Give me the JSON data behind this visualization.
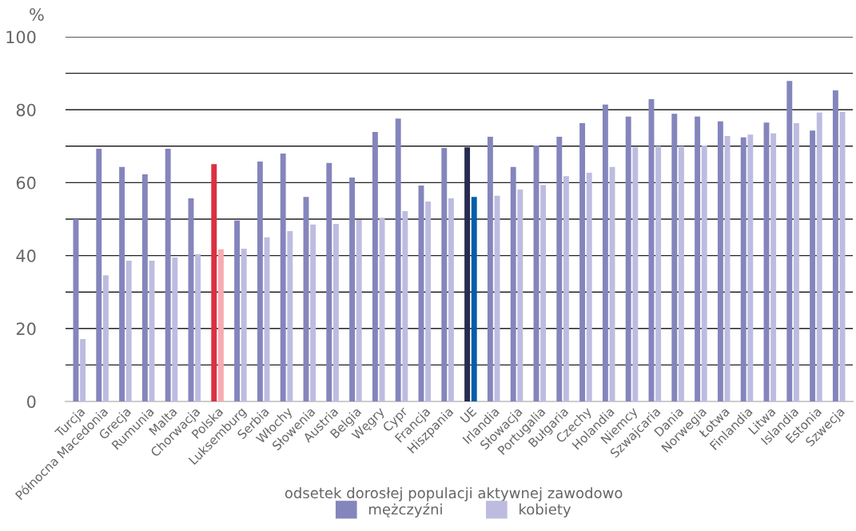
{
  "chart_data": {
    "type": "bar",
    "categories": [
      "Turcja",
      "Północna Macedonia",
      "Grecja",
      "Rumunia",
      "Malta",
      "Chorwacja",
      "Polska",
      "Luksemburg",
      "Serbia",
      "Włochy",
      "Słowenia",
      "Austria",
      "Belgia",
      "Węgry",
      "Cypr",
      "Francja",
      "Hiszpania",
      "UE",
      "Irlandia",
      "Słowacja",
      "Portugalia",
      "Bułgaria",
      "Czechy",
      "Holandia",
      "Niemcy",
      "Szwajcaria",
      "Dania",
      "Norwegia",
      "Łotwa",
      "Finlandia",
      "Litwa",
      "Islandia",
      "Estonia",
      "Szwecja"
    ],
    "series": [
      {
        "name": "mężczyźni",
        "color": "#8585bd",
        "colors": [
          "#8585bd",
          "#8585bd",
          "#8585bd",
          "#8585bd",
          "#8585bd",
          "#8585bd",
          "#dc3040",
          "#8585bd",
          "#8585bd",
          "#8585bd",
          "#8585bd",
          "#8585bd",
          "#8585bd",
          "#8585bd",
          "#8585bd",
          "#8585bd",
          "#8585bd",
          "#262b50",
          "#8585bd",
          "#8585bd",
          "#8585bd",
          "#8585bd",
          "#8585bd",
          "#8585bd",
          "#8585bd",
          "#8585bd",
          "#8585bd",
          "#8585bd",
          "#8585bd",
          "#8585bd",
          "#8585bd",
          "#8585bd",
          "#8585bd",
          "#8585bd"
        ],
        "values": [
          50.0,
          69.3,
          64.3,
          62.3,
          69.3,
          55.7,
          65.1,
          49.6,
          65.8,
          68.0,
          56.1,
          65.4,
          61.4,
          73.9,
          77.6,
          59.2,
          69.5,
          69.7,
          72.6,
          64.3,
          70.2,
          72.6,
          76.3,
          81.4,
          78.1,
          82.9,
          78.9,
          78.1,
          76.8,
          72.4,
          76.5,
          87.9,
          74.3,
          85.3
        ]
      },
      {
        "name": "kobiety",
        "color": "#bdbce0",
        "colors": [
          "#bdbce0",
          "#bdbce0",
          "#bdbce0",
          "#bdbce0",
          "#bdbce0",
          "#bdbce0",
          "#f8aab0",
          "#bdbce0",
          "#bdbce0",
          "#bdbce0",
          "#bdbce0",
          "#bdbce0",
          "#bdbce0",
          "#bdbce0",
          "#bdbce0",
          "#bdbce0",
          "#bdbce0",
          "#005ea8",
          "#bdbce0",
          "#bdbce0",
          "#bdbce0",
          "#bdbce0",
          "#bdbce0",
          "#bdbce0",
          "#bdbce0",
          "#bdbce0",
          "#bdbce0",
          "#bdbce0",
          "#bdbce0",
          "#bdbce0",
          "#bdbce0",
          "#bdbce0",
          "#bdbce0",
          "#bdbce0"
        ],
        "values": [
          17.1,
          34.6,
          38.6,
          38.6,
          39.5,
          40.4,
          41.7,
          41.9,
          45.0,
          46.7,
          48.5,
          48.7,
          49.8,
          50.4,
          52.2,
          54.8,
          55.7,
          56.1,
          56.4,
          58.1,
          59.4,
          61.8,
          62.7,
          64.3,
          69.7,
          70.0,
          70.0,
          70.2,
          72.8,
          73.2,
          73.5,
          76.3,
          79.2,
          79.4
        ]
      }
    ],
    "ylabel": "%",
    "xlabel": "odsetek dorosłej populacji aktywnej zawodowo",
    "ylim": [
      0,
      100
    ],
    "yticks": [
      0,
      {
        "value": 10,
        "label": null
      },
      20,
      {
        "value": 30,
        "label": null
      },
      40,
      {
        "value": 50,
        "label": null
      },
      60,
      {
        "value": 70,
        "label": null
      },
      80,
      {
        "value": 90,
        "label": null
      },
      100
    ],
    "grid": "y",
    "legend": "bottom"
  }
}
